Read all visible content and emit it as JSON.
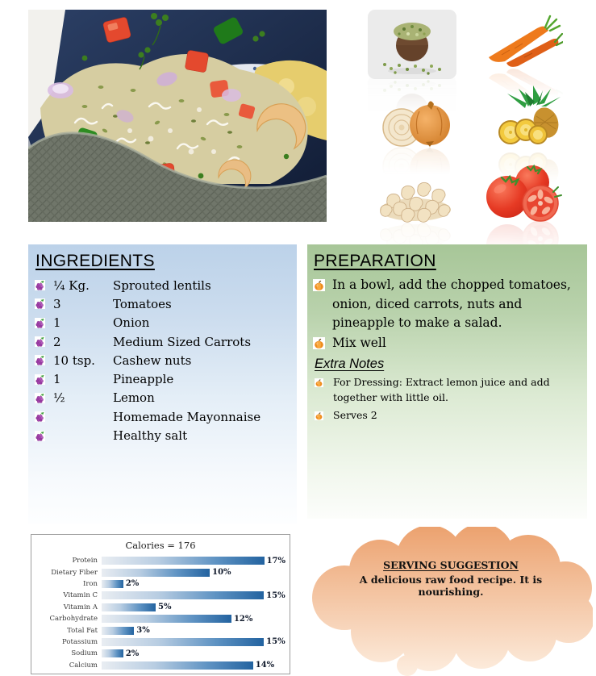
{
  "ingredients": {
    "title": "INGREDIENTS",
    "items": [
      {
        "qty": "¼ Kg.",
        "name": "Sprouted lentils"
      },
      {
        "qty": "3",
        "name": "Tomatoes"
      },
      {
        "qty": "1",
        "name": "Onion"
      },
      {
        "qty": "2",
        "name": "Medium Sized Carrots"
      },
      {
        "qty": "10 tsp.",
        "name": "Cashew nuts"
      },
      {
        "qty": "1",
        "name": "Pineapple"
      },
      {
        "qty": "½",
        "name": "Lemon"
      },
      {
        "qty": "",
        "name": "Homemade Mayonnaise"
      },
      {
        "qty": "",
        "name": "Healthy salt"
      }
    ]
  },
  "preparation": {
    "title": "PREPARATION",
    "steps": [
      "In a bowl, add the chopped tomatoes, onion, diced carrots, nuts and pineapple to make a salad.",
      "Mix well"
    ],
    "extra_notes_title": "Extra Notes",
    "notes": [
      "For Dressing: Extract lemon juice and add together with little oil.",
      "Serves 2"
    ]
  },
  "chart_data": {
    "type": "bar",
    "orientation": "horizontal",
    "title": "Calories = 176",
    "categories": [
      "Protein",
      "Dietary Fiber",
      "Iron",
      "Vitamin C",
      "Vitamin A",
      "Carbohydrate",
      "Total Fat",
      "Potassium",
      "Sodium",
      "Calcium"
    ],
    "values": [
      17,
      10,
      2,
      15,
      5,
      12,
      3,
      15,
      2,
      14
    ],
    "value_labels": [
      "17%",
      "10%",
      "2%",
      "15%",
      "5%",
      "12%",
      "3%",
      "15%",
      "2%",
      "14%"
    ],
    "xlim": [
      0,
      17
    ],
    "grid": false,
    "legend": "none",
    "bar_gradient": [
      "#e9edf2",
      "#2363a0"
    ]
  },
  "serving": {
    "title": "SERVING SUGGESTION",
    "text": "A delicious raw food recipe. It is nourishing."
  },
  "images": {
    "photo": "sprouted-lentil-salad-bowl-photo",
    "tiles": [
      "sprouted-lentils",
      "carrots",
      "onion",
      "pineapple",
      "cashew-nuts",
      "tomatoes"
    ]
  },
  "icons": {
    "ingredient_bullet": "grapes-icon",
    "preparation_bullet": "pumpkin-icon"
  },
  "colors": {
    "ingredients_panel_top": "#bcd2e9",
    "preparation_panel_top": "#a7c698",
    "chart_bar_dark": "#2363a0",
    "cloud_top": "#eca26f",
    "cloud_bottom": "#fdeee0"
  }
}
